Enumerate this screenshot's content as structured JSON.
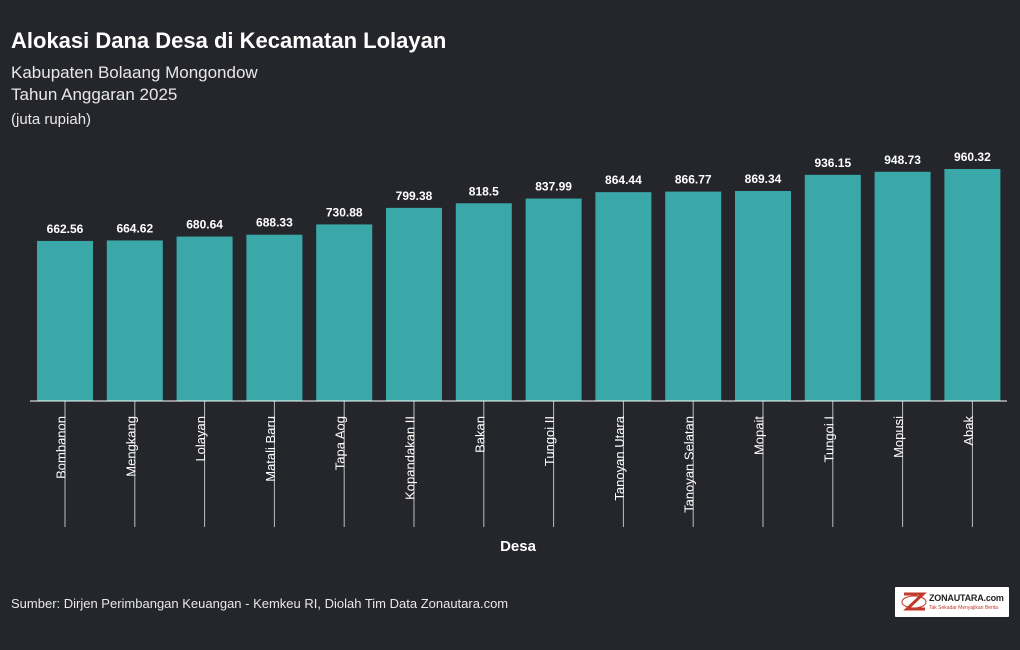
{
  "header": {
    "title": "Alokasi Dana Desa di Kecamatan Lolayan",
    "subtitle_line1": "Kabupaten Bolaang Mongondow",
    "subtitle_line2": "Tahun Anggaran 2025",
    "unit_note": "(juta rupiah)"
  },
  "chart_data": {
    "type": "bar",
    "title": "Alokasi Dana Desa di Kecamatan Lolayan",
    "xlabel": "Desa",
    "ylabel": "",
    "categories": [
      "Bombanon",
      "Mengkang",
      "Lolayan",
      "Matali Baru",
      "Tapa Aog",
      "Kopandakan II",
      "Bakan",
      "Tungoi II",
      "Tanoyan Utara",
      "Tanoyan Selatan",
      "Mopait",
      "Tungoi I",
      "Mopusi",
      "Abak"
    ],
    "values": [
      662.56,
      664.62,
      680.64,
      688.33,
      730.88,
      799.38,
      818.5,
      837.99,
      864.44,
      866.77,
      869.34,
      936.15,
      948.73,
      960.32
    ],
    "value_labels": [
      "662.56",
      "664.62",
      "680.64",
      "688.33",
      "730.88",
      "799.38",
      "818.5",
      "837.99",
      "864.44",
      "866.77",
      "869.34",
      "936.15",
      "948.73",
      "960.32"
    ],
    "ylim": [
      0,
      960.32
    ],
    "grid": false,
    "bar_color": "#3aa8a8"
  },
  "footer": {
    "source": "Sumber: Dirjen Perimbangan Keuangan - Kemkeu RI, Diolah Tim Data Zonautara.com",
    "logo_text": "ZONAUTARA.com",
    "logo_tagline": "Tak Sekadar Menyajikan Berita"
  }
}
